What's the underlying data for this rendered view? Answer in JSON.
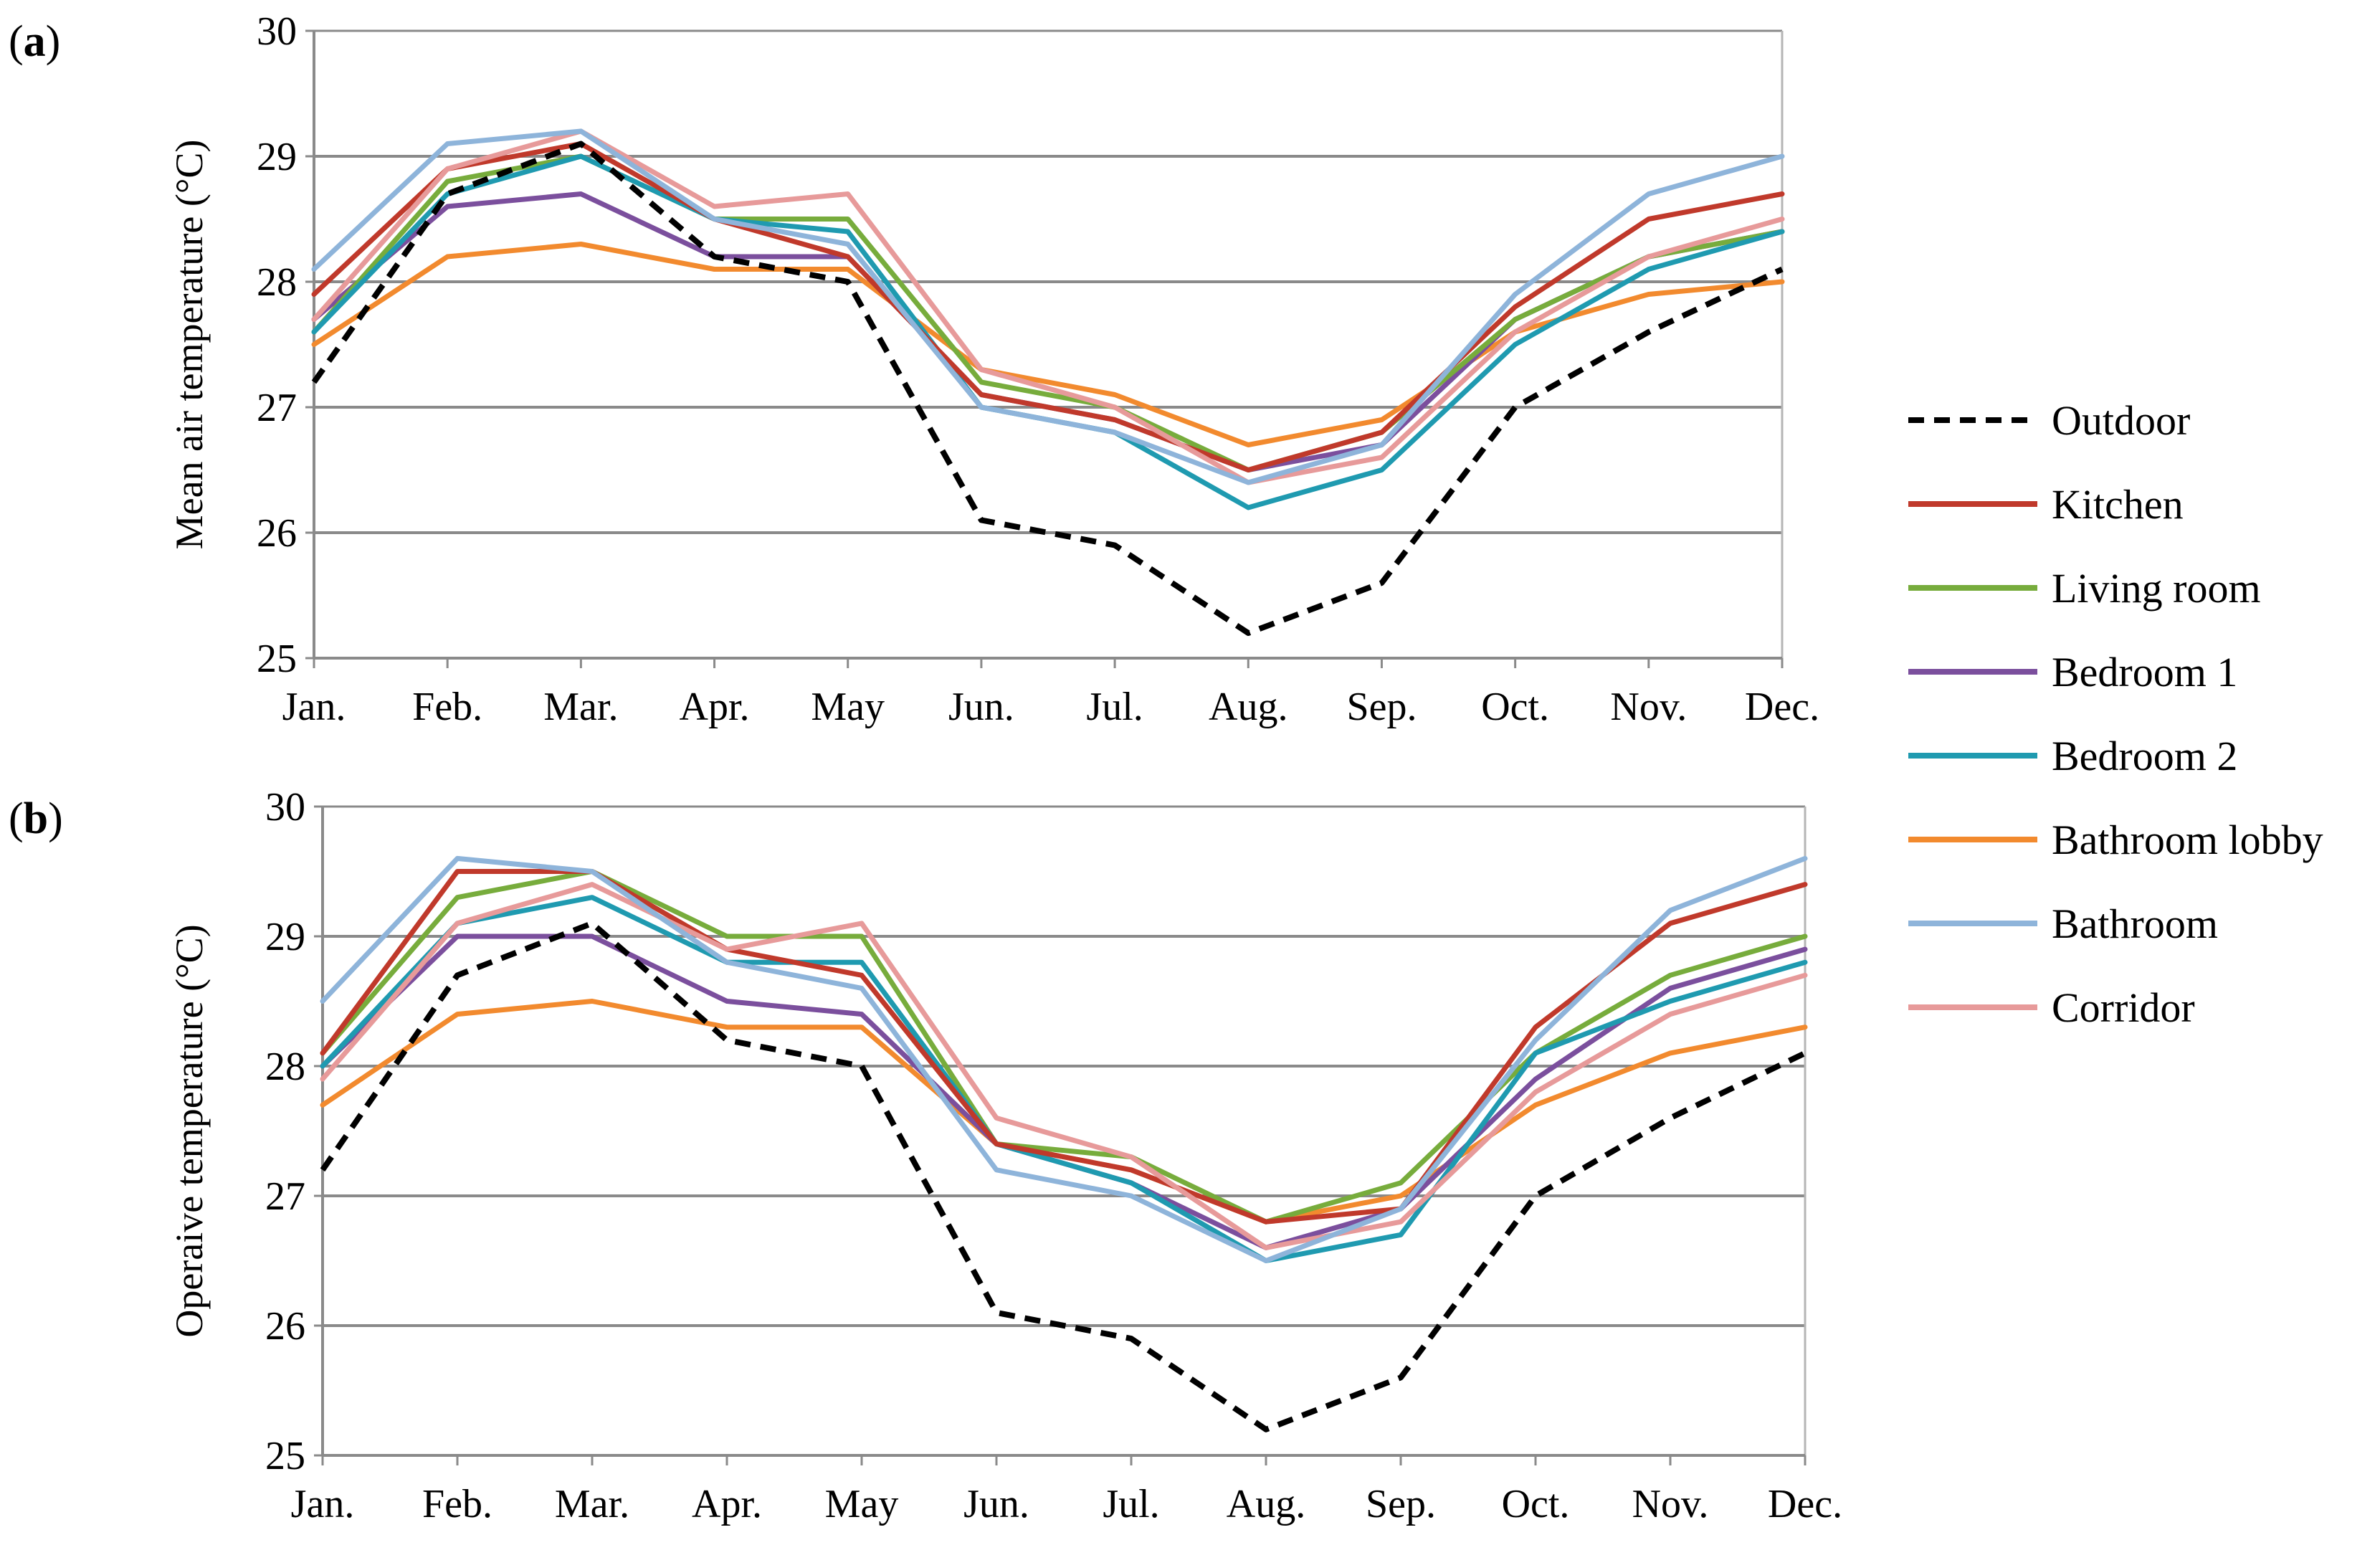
{
  "chart_data": [
    {
      "type": "line",
      "panel_label": "(a)",
      "ylabel": "Mean air temperature (°C)",
      "xlabel": "",
      "ylim": [
        25,
        30
      ],
      "yticks": [
        "25",
        "26",
        "27",
        "28",
        "29",
        "30"
      ],
      "categories": [
        "Jan.",
        "Feb.",
        "Mar.",
        "Apr.",
        "May",
        "Jun.",
        "Jul.",
        "Aug.",
        "Sep.",
        "Oct.",
        "Nov.",
        "Dec."
      ],
      "series": [
        {
          "name": "Bathroom lobby",
          "values": [
            27.5,
            28.2,
            28.3,
            28.1,
            28.1,
            27.3,
            27.1,
            26.7,
            26.9,
            27.6,
            27.9,
            28.0
          ]
        },
        {
          "name": "Bedroom 1",
          "values": [
            27.7,
            28.6,
            28.7,
            28.2,
            28.2,
            27.1,
            26.9,
            26.5,
            26.7,
            27.7,
            28.2,
            28.4
          ]
        },
        {
          "name": "Living room",
          "values": [
            27.6,
            28.8,
            29.0,
            28.5,
            28.5,
            27.2,
            27.0,
            26.5,
            26.8,
            27.7,
            28.2,
            28.4
          ]
        },
        {
          "name": "Bedroom 2",
          "values": [
            27.6,
            28.7,
            29.0,
            28.5,
            28.4,
            27.0,
            26.8,
            26.2,
            26.5,
            27.5,
            28.1,
            28.4
          ]
        },
        {
          "name": "Kitchen",
          "values": [
            27.9,
            28.9,
            29.1,
            28.5,
            28.2,
            27.1,
            26.9,
            26.5,
            26.8,
            27.8,
            28.5,
            28.7
          ]
        },
        {
          "name": "Corridor",
          "values": [
            27.7,
            28.9,
            29.2,
            28.6,
            28.7,
            27.3,
            27.0,
            26.4,
            26.6,
            27.6,
            28.2,
            28.5
          ]
        },
        {
          "name": "Bathroom",
          "values": [
            28.1,
            29.1,
            29.2,
            28.5,
            28.3,
            27.0,
            26.8,
            26.4,
            26.7,
            27.9,
            28.7,
            29.0
          ]
        },
        {
          "name": "Outdoor",
          "values": [
            27.2,
            28.7,
            29.1,
            28.2,
            28.0,
            26.1,
            25.9,
            25.2,
            25.6,
            27.0,
            27.6,
            28.1
          ]
        }
      ]
    },
    {
      "type": "line",
      "panel_label": "(b)",
      "ylabel": "Operaive temperature (°C)",
      "xlabel": "",
      "ylim": [
        25,
        30
      ],
      "yticks": [
        "25",
        "26",
        "27",
        "28",
        "29",
        "30"
      ],
      "categories": [
        "Jan.",
        "Feb.",
        "Mar.",
        "Apr.",
        "May",
        "Jun.",
        "Jul.",
        "Aug.",
        "Sep.",
        "Oct.",
        "Nov.",
        "Dec."
      ],
      "series": [
        {
          "name": "Bathroom lobby",
          "values": [
            27.7,
            28.4,
            28.5,
            28.3,
            28.3,
            27.4,
            27.2,
            26.8,
            27.0,
            27.7,
            28.1,
            28.3
          ]
        },
        {
          "name": "Bedroom 1",
          "values": [
            28.0,
            29.0,
            29.0,
            28.5,
            28.4,
            27.4,
            27.1,
            26.6,
            26.9,
            27.9,
            28.6,
            28.9
          ]
        },
        {
          "name": "Living room",
          "values": [
            28.1,
            29.3,
            29.5,
            29.0,
            29.0,
            27.4,
            27.3,
            26.8,
            27.1,
            28.1,
            28.7,
            29.0
          ]
        },
        {
          "name": "Bedroom 2",
          "values": [
            28.0,
            29.1,
            29.3,
            28.8,
            28.8,
            27.4,
            27.1,
            26.5,
            26.7,
            28.1,
            28.5,
            28.8
          ]
        },
        {
          "name": "Kitchen",
          "values": [
            28.1,
            29.5,
            29.5,
            28.9,
            28.7,
            27.4,
            27.2,
            26.8,
            26.9,
            28.3,
            29.1,
            29.4
          ]
        },
        {
          "name": "Corridor",
          "values": [
            27.9,
            29.1,
            29.4,
            28.9,
            29.1,
            27.6,
            27.3,
            26.6,
            26.8,
            27.8,
            28.4,
            28.7
          ]
        },
        {
          "name": "Bathroom",
          "values": [
            28.5,
            29.6,
            29.5,
            28.8,
            28.6,
            27.2,
            27.0,
            26.5,
            26.9,
            28.2,
            29.2,
            29.6
          ]
        },
        {
          "name": "Outdoor",
          "values": [
            27.2,
            28.7,
            29.1,
            28.2,
            28.0,
            26.1,
            25.9,
            25.2,
            25.6,
            27.0,
            27.6,
            28.1
          ]
        }
      ]
    }
  ],
  "legend": {
    "entries": [
      {
        "name": "Outdoor",
        "label": "Outdoor",
        "color": "#000000",
        "dashed": true
      },
      {
        "name": "Kitchen",
        "label": "Kitchen",
        "color": "#C0392B",
        "dashed": false
      },
      {
        "name": "Living room",
        "label": "Living room",
        "color": "#77AC3C",
        "dashed": false
      },
      {
        "name": "Bedroom 1",
        "label": "Bedroom 1",
        "color": "#7B4F9D",
        "dashed": false
      },
      {
        "name": "Bedroom 2",
        "label": "Bedroom 2",
        "color": "#1F9AB0",
        "dashed": false
      },
      {
        "name": "Bathroom lobby",
        "label": "Bathroom lobby",
        "color": "#F28A2E",
        "dashed": false
      },
      {
        "name": "Bathroom",
        "label": "Bathroom",
        "color": "#8EB4DA",
        "dashed": false
      },
      {
        "name": "Corridor",
        "label": "Corridor",
        "color": "#E79A9A",
        "dashed": false
      }
    ]
  }
}
